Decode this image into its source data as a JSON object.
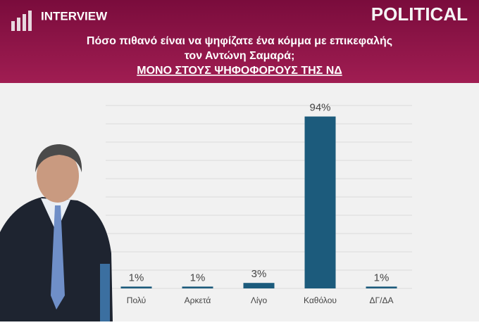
{
  "brand": {
    "name": "INTERVIEW",
    "section": "POLITICAL"
  },
  "chart_data": {
    "type": "bar",
    "title": "Πόσο πιθανό είναι να ψηφίζατε ένα κόμμα με επικεφαλής",
    "title_line2": "τον Αντώνη Σαμαρά;",
    "subtitle": "ΜΟΝΟ ΣΤΟΥΣ ΨΗΦΟΦΟΡΟΥΣ ΤΗΣ ΝΔ",
    "categories": [
      "Πολύ",
      "Αρκετά",
      "Λίγο",
      "Καθόλου",
      "ΔΓ/ΔΑ"
    ],
    "values": [
      1,
      1,
      3,
      94,
      1
    ],
    "value_labels": [
      "1%",
      "1%",
      "3%",
      "94%",
      "1%"
    ],
    "color": "#1c5b7c",
    "ylim": [
      0,
      100
    ],
    "yticks": [
      0,
      10,
      20,
      30,
      40,
      50,
      60,
      70,
      80,
      90,
      100
    ],
    "grid": true
  }
}
